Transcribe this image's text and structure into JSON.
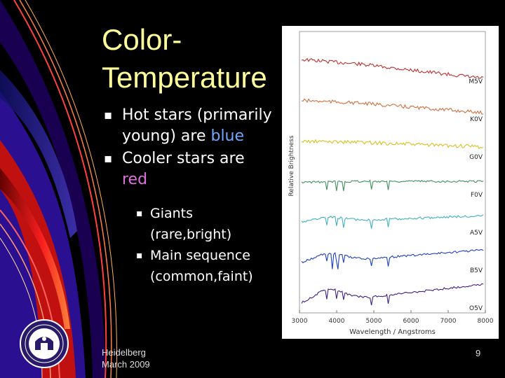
{
  "title": {
    "line1": "Color-",
    "line2": "Temperature"
  },
  "bullets": {
    "b1_part1": "Hot stars (primarily young) are ",
    "b1_colored": "blue",
    "b2_part1": "Cooler stars are ",
    "b2_colored": "red",
    "sub1": "Giants (rare,bright)",
    "sub2": "Main sequence (common,faint)"
  },
  "footer": {
    "line1": "Heidelberg",
    "line2": "March 2009"
  },
  "page_number": "9",
  "colors": {
    "title": "#ffff99",
    "blue": "#6fa8ff",
    "red": "#e070e0"
  },
  "chart_data": {
    "type": "line",
    "xlabel": "Wavelength / Angstroms",
    "ylabel": "Relative Brightness",
    "x_ticks": [
      "3000",
      "4000",
      "5000",
      "6000",
      "7000",
      "8000"
    ],
    "xlim": [
      3000,
      8000
    ],
    "series": [
      {
        "name": "M5V",
        "color": "#c03030"
      },
      {
        "name": "K0V",
        "color": "#d07040"
      },
      {
        "name": "G0V",
        "color": "#d8c020"
      },
      {
        "name": "F0V",
        "color": "#409060"
      },
      {
        "name": "A5V",
        "color": "#40b0c0"
      },
      {
        "name": "B5V",
        "color": "#2040c0"
      },
      {
        "name": "O5V",
        "color": "#402080"
      }
    ]
  }
}
